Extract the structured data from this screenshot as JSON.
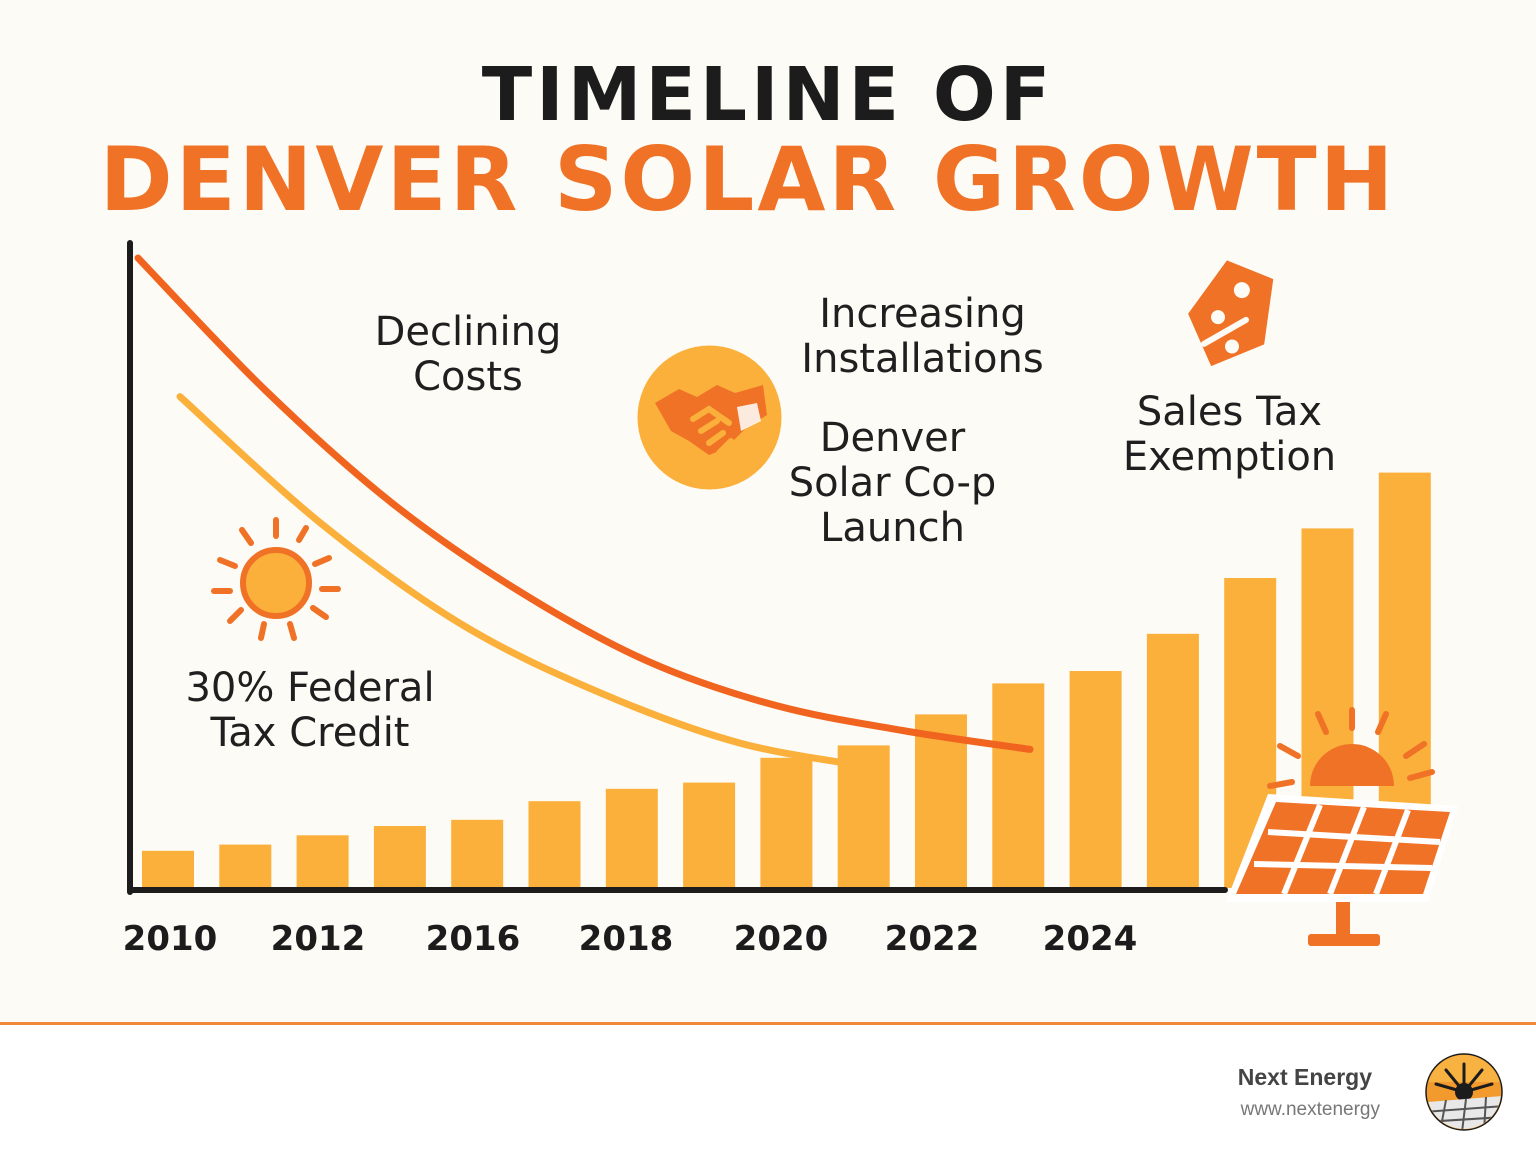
{
  "title": {
    "line1": "TIMELINE OF",
    "line2": "DENVER SOLAR GROWTH"
  },
  "annotations": {
    "declining_costs": "Declining Costs",
    "increasing_installations": "Increasing Installations",
    "denver_coop": "Denver Solar Co-p Launch",
    "sales_tax": "Sales Tax Exemption",
    "federal_credit": "30% Federal Tax Credit"
  },
  "icons": {
    "sun": "sun-icon",
    "handshake": "handshake-icon",
    "price_tag": "percent-tag-icon",
    "solar_panel": "solar-panel-icon",
    "logo": "next-energy-logo"
  },
  "colors": {
    "title_dark": "#1c1c1c",
    "title_orange": "#f07226",
    "bar": "#fbb03b",
    "cost_line_dark": "#f0641f",
    "cost_line_light": "#fbb03b",
    "accent": "#f07226"
  },
  "chart_data": {
    "type": "bar",
    "title": "TIMELINE OF DENVER SOLAR GROWTH",
    "xlabel": "",
    "ylabel": "",
    "grid": false,
    "x_tick_labels": [
      "2010",
      "2012",
      "2016",
      "2018",
      "2020",
      "2022",
      "2024"
    ],
    "bar_count": 17,
    "values": [
      6,
      7,
      8.5,
      10,
      11,
      14,
      16,
      17,
      21,
      23,
      28,
      33,
      35,
      41,
      50,
      58,
      67
    ],
    "ylim": [
      0,
      100
    ],
    "lines": [
      {
        "values": [
          100,
          79,
          61,
          47,
          36,
          29,
          25,
          22
        ]
      },
      {
        "values": [
          78,
          58,
          42,
          31,
          23,
          19
        ]
      }
    ]
  },
  "footer": {
    "brand": "Next Energy",
    "url": "www.nextenergy"
  }
}
